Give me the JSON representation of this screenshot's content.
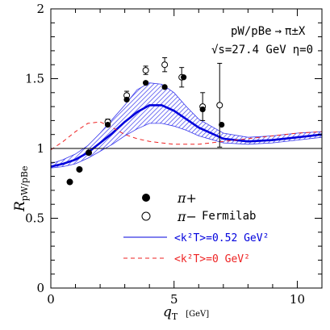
{
  "chart_data": {
    "type": "scatter",
    "xlabel": "q",
    "xlabel_sub": "T",
    "xunit": "[GeV]",
    "ylabel": "R",
    "ylabel_sub": "pW/pBe",
    "xlim": [
      0,
      11
    ],
    "ylim": [
      0,
      2
    ],
    "x_ticks": [
      0,
      5,
      10
    ],
    "x_tick_labels": [
      "0",
      "5",
      "10"
    ],
    "y_ticks": [
      0,
      0.5,
      1,
      1.5,
      2
    ],
    "y_tick_labels": [
      "0",
      "0.5",
      "1",
      "1.5",
      "2"
    ],
    "reference_line_y": 1,
    "annotation": {
      "line1": "pW/pBe",
      "arrow": "→",
      "line1_suffix": "π±X",
      "line2": "√s=27.4 GeV",
      "line2_eta": "η=0"
    },
    "legend": {
      "pi_plus": "π+",
      "pi_minus": "π−",
      "source": "Fermilab",
      "blue_label": "<k²T>=0.52 GeV²",
      "red_label": "<k²T>=0 GeV²"
    },
    "colors": {
      "blue": "#0000dd",
      "band": "#3a3aee",
      "red": "#ee2222",
      "axis": "#000000"
    },
    "series": [
      {
        "name": "π+",
        "marker": "filled-circle",
        "points": [
          {
            "x": 0.77,
            "y": 0.76
          },
          {
            "x": 1.16,
            "y": 0.85
          },
          {
            "x": 1.54,
            "y": 0.97
          },
          {
            "x": 2.31,
            "y": 1.17
          },
          {
            "x": 3.08,
            "y": 1.35
          },
          {
            "x": 3.85,
            "y": 1.47
          },
          {
            "x": 4.62,
            "y": 1.44
          },
          {
            "x": 5.39,
            "y": 1.51
          },
          {
            "x": 6.16,
            "y": 1.28
          },
          {
            "x": 6.93,
            "y": 1.17
          }
        ]
      },
      {
        "name": "π−",
        "marker": "open-circle",
        "points": [
          {
            "x": 0.77,
            "y": 0.76,
            "err": 0.01
          },
          {
            "x": 1.16,
            "y": 0.85,
            "err": 0.01
          },
          {
            "x": 1.54,
            "y": 0.97,
            "err": 0.01
          },
          {
            "x": 2.31,
            "y": 1.19,
            "err": 0.02
          },
          {
            "x": 3.08,
            "y": 1.38,
            "err": 0.03
          },
          {
            "x": 3.85,
            "y": 1.56,
            "err": 0.03
          },
          {
            "x": 4.62,
            "y": 1.6,
            "err": 0.05
          },
          {
            "x": 5.31,
            "y": 1.51,
            "err": 0.07
          },
          {
            "x": 6.16,
            "y": 1.3,
            "err": 0.1
          },
          {
            "x": 6.85,
            "y": 1.31,
            "err": 0.3
          }
        ]
      },
      {
        "name": "<k²T>=0.52 GeV²",
        "style": "solid",
        "x": [
          0,
          0.5,
          1,
          1.5,
          2,
          2.5,
          3,
          3.5,
          4,
          4.5,
          5,
          5.5,
          6,
          7,
          8,
          9,
          10,
          11
        ],
        "y": [
          0.87,
          0.89,
          0.92,
          0.97,
          1.04,
          1.11,
          1.19,
          1.26,
          1.31,
          1.31,
          1.27,
          1.21,
          1.15,
          1.07,
          1.05,
          1.06,
          1.08,
          1.1
        ]
      },
      {
        "name": "<k²T>=0 GeV²",
        "style": "dashed",
        "x": [
          0,
          0.5,
          1,
          1.5,
          2,
          2.5,
          3,
          3.5,
          4,
          4.5,
          5,
          6,
          7,
          8,
          9,
          10,
          11
        ],
        "y": [
          0.99,
          1.05,
          1.12,
          1.18,
          1.19,
          1.15,
          1.1,
          1.07,
          1.05,
          1.04,
          1.03,
          1.03,
          1.05,
          1.07,
          1.09,
          1.11,
          1.12
        ]
      }
    ],
    "band": {
      "x": [
        0,
        0.5,
        1,
        1.5,
        2,
        2.5,
        3,
        3.5,
        4,
        4.5,
        5,
        5.5,
        6,
        7,
        8,
        9,
        10,
        11
      ],
      "upper": [
        0.89,
        0.92,
        0.96,
        1.02,
        1.11,
        1.21,
        1.31,
        1.42,
        1.47,
        1.46,
        1.4,
        1.3,
        1.21,
        1.11,
        1.08,
        1.09,
        1.11,
        1.12
      ],
      "lower": [
        0.86,
        0.87,
        0.89,
        0.93,
        0.98,
        1.03,
        1.09,
        1.14,
        1.18,
        1.18,
        1.16,
        1.13,
        1.09,
        1.04,
        1.03,
        1.04,
        1.06,
        1.08
      ]
    }
  }
}
